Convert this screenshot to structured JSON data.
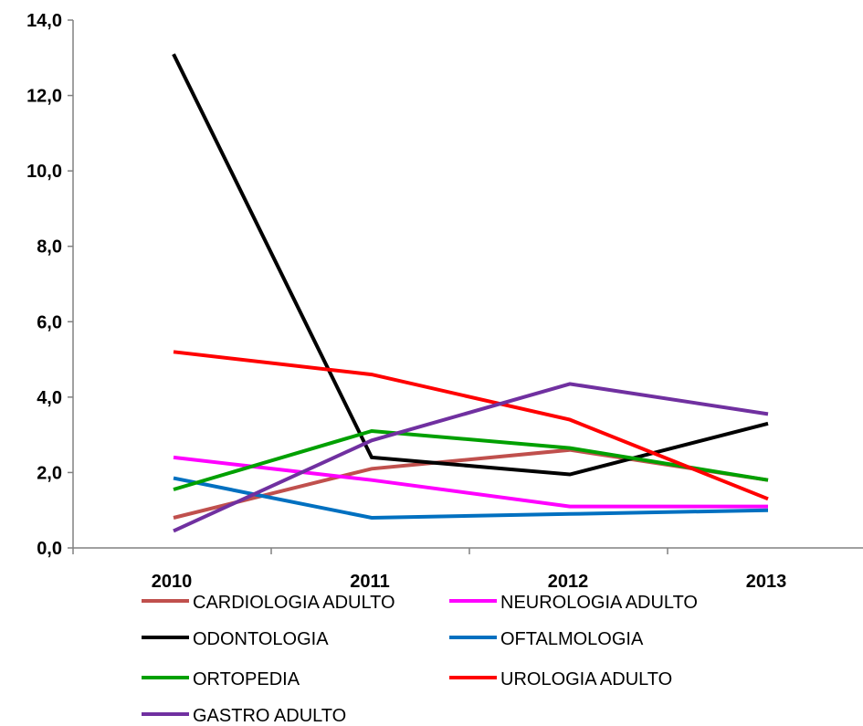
{
  "chart_data": {
    "type": "line",
    "title": "",
    "xlabel": "",
    "ylabel": "",
    "categories": [
      "2010",
      "2011",
      "2012",
      "2013"
    ],
    "ylim": [
      0,
      14
    ],
    "yticks": [
      "0,0",
      "2,0",
      "4,0",
      "6,0",
      "8,0",
      "10,0",
      "12,0",
      "14,0"
    ],
    "grid": false,
    "legend_position": "bottom",
    "series": [
      {
        "name": "CARDIOLOGIA ADULTO",
        "color": "#C0504D",
        "values": [
          0.8,
          2.1,
          2.6,
          1.8
        ]
      },
      {
        "name": "NEUROLOGIA ADULTO",
        "color": "#FF00FF",
        "values": [
          2.4,
          1.8,
          1.1,
          1.1
        ]
      },
      {
        "name": "ODONTOLOGIA",
        "color": "#000000",
        "values": [
          13.1,
          2.4,
          1.95,
          3.3
        ]
      },
      {
        "name": "OFTALMOLOGIA",
        "color": "#0070C0",
        "values": [
          1.85,
          0.8,
          0.9,
          1.0
        ]
      },
      {
        "name": "ORTOPEDIA",
        "color": "#00A000",
        "values": [
          1.55,
          3.1,
          2.65,
          1.8
        ]
      },
      {
        "name": "UROLOGIA ADULTO",
        "color": "#FF0000",
        "values": [
          5.2,
          4.6,
          3.4,
          1.3
        ]
      },
      {
        "name": "GASTRO ADULTO",
        "color": "#7030A0",
        "values": [
          0.45,
          2.85,
          4.35,
          3.55
        ]
      }
    ]
  }
}
